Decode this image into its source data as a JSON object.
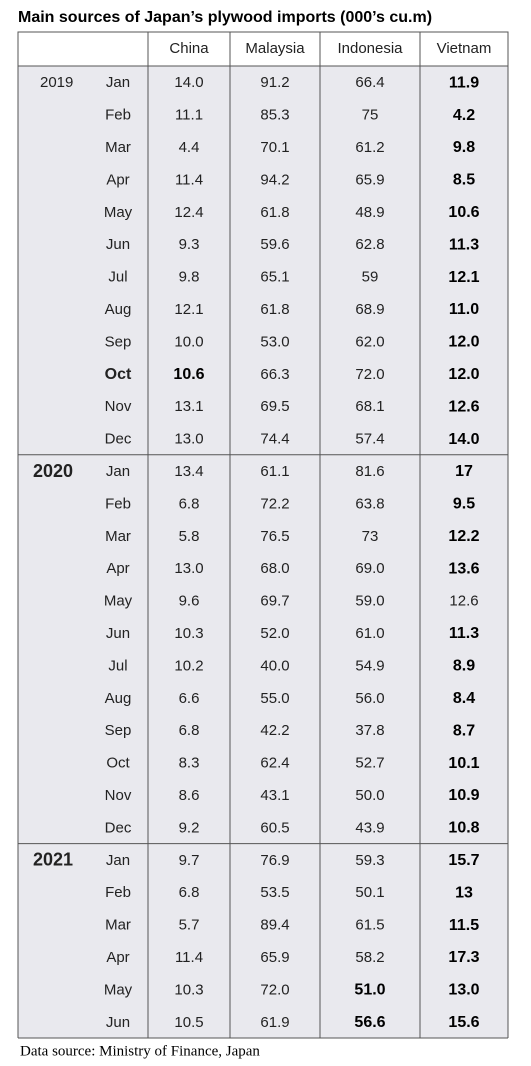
{
  "title": "Main sources of Japan’s plywood imports (000’s cu.m)",
  "columns": [
    "China",
    "Malaysia",
    "Indonesia",
    "Vietnam"
  ],
  "groups": [
    {
      "year": "2019",
      "rows": [
        {
          "month": "Jan",
          "values": [
            "14.0",
            "91.2",
            "66.4",
            "11.9"
          ]
        },
        {
          "month": "Feb",
          "values": [
            "11.1",
            "85.3",
            "75",
            "4.2"
          ]
        },
        {
          "month": "Mar",
          "values": [
            "4.4",
            "70.1",
            "61.2",
            "9.8"
          ]
        },
        {
          "month": "Apr",
          "values": [
            "11.4",
            "94.2",
            "65.9",
            "8.5"
          ]
        },
        {
          "month": "May",
          "values": [
            "12.4",
            "61.8",
            "48.9",
            "10.6"
          ]
        },
        {
          "month": "Jun",
          "values": [
            "9.3",
            "59.6",
            "62.8",
            "11.3"
          ]
        },
        {
          "month": "Jul",
          "values": [
            "9.8",
            "65.1",
            "59",
            "12.1"
          ]
        },
        {
          "month": "Aug",
          "values": [
            "12.1",
            "61.8",
            "68.9",
            "11.0"
          ]
        },
        {
          "month": "Sep",
          "values": [
            "10.0",
            "53.0",
            "62.0",
            "12.0"
          ]
        },
        {
          "month": "Oct",
          "values": [
            "10.6",
            "66.3",
            "72.0",
            "12.0"
          ]
        },
        {
          "month": "Nov",
          "values": [
            "13.1",
            "69.5",
            "68.1",
            "12.6"
          ]
        },
        {
          "month": "Dec",
          "values": [
            "13.0",
            "74.4",
            "57.4",
            "14.0"
          ]
        }
      ]
    },
    {
      "year": "2020",
      "rows": [
        {
          "month": "Jan",
          "values": [
            "13.4",
            "61.1",
            "81.6",
            "17"
          ]
        },
        {
          "month": "Feb",
          "values": [
            "6.8",
            "72.2",
            "63.8",
            "9.5"
          ]
        },
        {
          "month": "Mar",
          "values": [
            "5.8",
            "76.5",
            "73",
            "12.2"
          ]
        },
        {
          "month": "Apr",
          "values": [
            "13.0",
            "68.0",
            "69.0",
            "13.6"
          ]
        },
        {
          "month": "May",
          "values": [
            "9.6",
            "69.7",
            "59.0",
            "12.6"
          ]
        },
        {
          "month": "Jun",
          "values": [
            "10.3",
            "52.0",
            "61.0",
            "11.3"
          ]
        },
        {
          "month": "Jul",
          "values": [
            "10.2",
            "40.0",
            "54.9",
            "8.9"
          ]
        },
        {
          "month": "Aug",
          "values": [
            "6.6",
            "55.0",
            "56.0",
            "8.4"
          ]
        },
        {
          "month": "Sep",
          "values": [
            "6.8",
            "42.2",
            "37.8",
            "8.7"
          ]
        },
        {
          "month": "Oct",
          "values": [
            "8.3",
            "62.4",
            "52.7",
            "10.1"
          ]
        },
        {
          "month": "Nov",
          "values": [
            "8.6",
            "43.1",
            "50.0",
            "10.9"
          ]
        },
        {
          "month": "Dec",
          "values": [
            "9.2",
            "60.5",
            "43.9",
            "10.8"
          ]
        }
      ]
    },
    {
      "year": "2021",
      "rows": [
        {
          "month": "Jan",
          "values": [
            "9.7",
            "76.9",
            "59.3",
            "15.7"
          ]
        },
        {
          "month": "Feb",
          "values": [
            "6.8",
            "53.5",
            "50.1",
            "13"
          ]
        },
        {
          "month": "Mar",
          "values": [
            "5.7",
            "89.4",
            "61.5",
            "11.5"
          ]
        },
        {
          "month": "Apr",
          "values": [
            "11.4",
            "65.9",
            "58.2",
            "17.3"
          ]
        },
        {
          "month": "May",
          "values": [
            "10.3",
            "72.0",
            "51.0",
            "13.0"
          ]
        },
        {
          "month": "Jun",
          "values": [
            "10.5",
            "61.9",
            "56.6",
            "15.6"
          ]
        }
      ]
    }
  ],
  "source": "Data source: Ministry of Finance, Japan"
}
